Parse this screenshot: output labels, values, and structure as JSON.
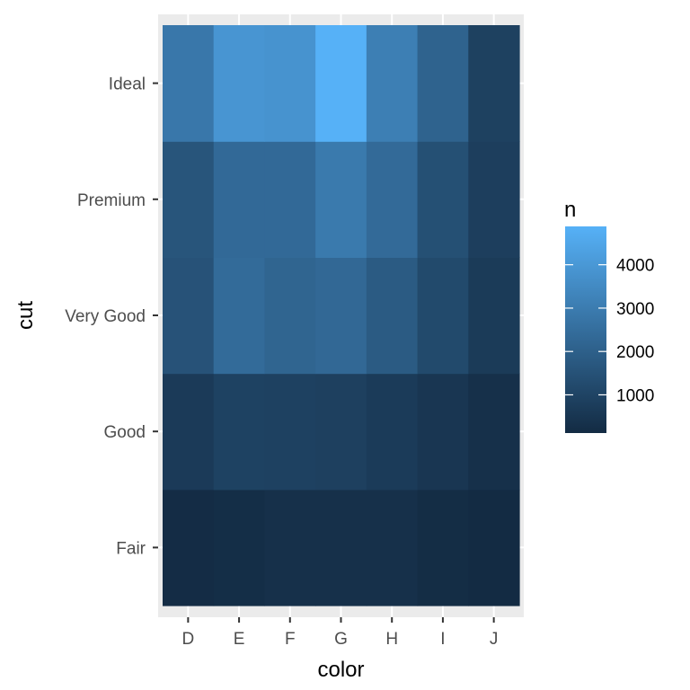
{
  "chart_data": {
    "type": "heatmap",
    "x_categories": [
      "D",
      "E",
      "F",
      "G",
      "H",
      "I",
      "J"
    ],
    "y_categories": [
      "Fair",
      "Good",
      "Very Good",
      "Premium",
      "Ideal"
    ],
    "values": [
      [
        163,
        224,
        312,
        314,
        303,
        175,
        119
      ],
      [
        662,
        933,
        909,
        871,
        702,
        522,
        307
      ],
      [
        1513,
        2400,
        2164,
        2299,
        1824,
        1204,
        678
      ],
      [
        1603,
        2337,
        2331,
        2924,
        2360,
        1428,
        808
      ],
      [
        2834,
        3903,
        3826,
        4884,
        3115,
        2093,
        896
      ]
    ],
    "xlabel": "color",
    "ylabel": "cut",
    "fill_scale": {
      "title": "n",
      "low_color": "#132b43",
      "high_color": "#56b1f7",
      "limits": [
        119,
        4884
      ],
      "breaks": [
        1000,
        2000,
        3000,
        4000
      ]
    },
    "panel_background": "#ebebeb",
    "grid": true,
    "legend_position": "right"
  }
}
